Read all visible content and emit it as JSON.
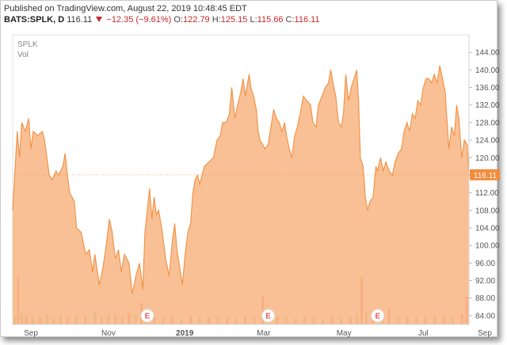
{
  "header": {
    "published": "Published on TradingView.com, August 22, 2019 10:48:45 EDT",
    "symbol": "BATS:SPLK, D",
    "last": "116.11",
    "change": "−12.35 (−9.61%)",
    "open_label": "O:",
    "open": "122.79",
    "high_label": "H:",
    "high": "125.15",
    "low_label": "L:",
    "low": "115.66",
    "close_label": "C:",
    "close": "116.11"
  },
  "legend": {
    "symbol": "SPLK",
    "volume": "Vol"
  },
  "colors": {
    "area_line": "#f0954a",
    "area_fill": "#f7b07a",
    "vol_up": "#b5d4a8",
    "vol_down": "#f2a28a",
    "price_tag": "#f28c3c",
    "event": "#e05a5a"
  },
  "chart_data": {
    "type": "area",
    "symbol": "SPLK",
    "ylim": [
      82,
      148
    ],
    "y_ticks": [
      "144.00",
      "140.00",
      "136.00",
      "132.00",
      "128.00",
      "124.00",
      "120.00",
      "116.00",
      "112.00",
      "108.00",
      "104.00",
      "100.00",
      "96.00",
      "92.00",
      "88.00",
      "84.00"
    ],
    "x_ticks": [
      {
        "label": "Sep",
        "x": 0.04
      },
      {
        "label": "Nov",
        "x": 0.21
      },
      {
        "label": "2019",
        "x": 0.377
      },
      {
        "label": "Mar",
        "x": 0.55
      },
      {
        "label": "May",
        "x": 0.726
      },
      {
        "label": "Jul",
        "x": 0.9
      },
      {
        "label": "Sep",
        "x": 1.07
      }
    ],
    "last_price": "116.11",
    "last_value": 116.11,
    "events": [
      {
        "label": "E",
        "x": 0.295
      },
      {
        "label": "E",
        "x": 0.56
      },
      {
        "label": "E",
        "x": 0.8
      }
    ],
    "series": [
      {
        "points": [
          [
            0.0,
            108
          ],
          [
            0.01,
            126
          ],
          [
            0.015,
            120
          ],
          [
            0.02,
            128
          ],
          [
            0.028,
            126
          ],
          [
            0.035,
            129
          ],
          [
            0.04,
            122
          ],
          [
            0.045,
            126
          ],
          [
            0.055,
            125
          ],
          [
            0.065,
            126
          ],
          [
            0.07,
            124
          ],
          [
            0.08,
            116
          ],
          [
            0.087,
            115
          ],
          [
            0.095,
            117
          ],
          [
            0.1,
            116
          ],
          [
            0.11,
            118
          ],
          [
            0.115,
            121
          ],
          [
            0.12,
            116
          ],
          [
            0.125,
            112
          ],
          [
            0.135,
            110
          ],
          [
            0.14,
            104
          ],
          [
            0.15,
            103
          ],
          [
            0.16,
            98
          ],
          [
            0.168,
            99
          ],
          [
            0.175,
            94
          ],
          [
            0.18,
            98
          ],
          [
            0.19,
            91
          ],
          [
            0.198,
            95
          ],
          [
            0.205,
            100
          ],
          [
            0.212,
            106
          ],
          [
            0.218,
            103
          ],
          [
            0.225,
            97
          ],
          [
            0.232,
            99
          ],
          [
            0.238,
            94
          ],
          [
            0.245,
            98
          ],
          [
            0.255,
            96
          ],
          [
            0.262,
            89
          ],
          [
            0.27,
            93
          ],
          [
            0.278,
            96
          ],
          [
            0.285,
            90
          ],
          [
            0.29,
            103
          ],
          [
            0.297,
            110
          ],
          [
            0.3,
            113
          ],
          [
            0.305,
            106
          ],
          [
            0.31,
            111
          ],
          [
            0.315,
            107
          ],
          [
            0.32,
            108
          ],
          [
            0.328,
            103
          ],
          [
            0.335,
            97
          ],
          [
            0.343,
            93
          ],
          [
            0.35,
            101
          ],
          [
            0.355,
            105
          ],
          [
            0.36,
            99
          ],
          [
            0.366,
            95
          ],
          [
            0.372,
            91
          ],
          [
            0.378,
            98
          ],
          [
            0.384,
            103
          ],
          [
            0.39,
            105
          ],
          [
            0.395,
            112
          ],
          [
            0.4,
            115
          ],
          [
            0.405,
            116
          ],
          [
            0.41,
            114
          ],
          [
            0.42,
            118
          ],
          [
            0.43,
            119
          ],
          [
            0.44,
            120
          ],
          [
            0.448,
            124
          ],
          [
            0.455,
            125
          ],
          [
            0.46,
            128
          ],
          [
            0.468,
            128
          ],
          [
            0.475,
            130
          ],
          [
            0.48,
            136
          ],
          [
            0.487,
            129
          ],
          [
            0.493,
            132
          ],
          [
            0.5,
            135
          ],
          [
            0.505,
            138
          ],
          [
            0.51,
            134
          ],
          [
            0.518,
            139
          ],
          [
            0.522,
            136
          ],
          [
            0.528,
            134
          ],
          [
            0.534,
            131
          ],
          [
            0.538,
            126
          ],
          [
            0.542,
            124
          ],
          [
            0.548,
            123
          ],
          [
            0.553,
            122
          ],
          [
            0.56,
            123
          ],
          [
            0.566,
            127
          ],
          [
            0.572,
            131
          ],
          [
            0.578,
            129
          ],
          [
            0.584,
            128
          ],
          [
            0.59,
            126
          ],
          [
            0.596,
            128
          ],
          [
            0.6,
            125
          ],
          [
            0.606,
            122
          ],
          [
            0.612,
            120
          ],
          [
            0.618,
            125
          ],
          [
            0.624,
            127
          ],
          [
            0.63,
            130
          ],
          [
            0.637,
            134
          ],
          [
            0.645,
            133
          ],
          [
            0.653,
            132
          ],
          [
            0.658,
            128
          ],
          [
            0.665,
            127
          ],
          [
            0.67,
            132
          ],
          [
            0.678,
            134
          ],
          [
            0.685,
            136
          ],
          [
            0.692,
            137
          ],
          [
            0.697,
            140
          ],
          [
            0.702,
            137
          ],
          [
            0.708,
            134
          ],
          [
            0.714,
            128
          ],
          [
            0.72,
            127
          ],
          [
            0.725,
            130
          ],
          [
            0.73,
            139
          ],
          [
            0.736,
            133
          ],
          [
            0.742,
            136
          ],
          [
            0.748,
            138
          ],
          [
            0.754,
            140
          ],
          [
            0.758,
            133
          ],
          [
            0.762,
            120
          ],
          [
            0.768,
            118
          ],
          [
            0.773,
            111
          ],
          [
            0.778,
            108
          ],
          [
            0.783,
            110
          ],
          [
            0.79,
            111
          ],
          [
            0.796,
            118
          ],
          [
            0.8,
            117
          ],
          [
            0.806,
            120
          ],
          [
            0.812,
            117
          ],
          [
            0.818,
            119
          ],
          [
            0.825,
            117
          ],
          [
            0.832,
            116
          ],
          [
            0.838,
            119
          ],
          [
            0.845,
            121
          ],
          [
            0.852,
            122
          ],
          [
            0.858,
            126
          ],
          [
            0.864,
            128
          ],
          [
            0.87,
            126
          ],
          [
            0.876,
            130
          ],
          [
            0.882,
            129
          ],
          [
            0.888,
            133
          ],
          [
            0.894,
            132
          ],
          [
            0.9,
            136
          ],
          [
            0.906,
            138
          ],
          [
            0.912,
            138
          ],
          [
            0.918,
            137
          ],
          [
            0.924,
            139
          ],
          [
            0.93,
            137
          ],
          [
            0.936,
            141
          ],
          [
            0.942,
            138
          ],
          [
            0.948,
            135
          ],
          [
            0.952,
            128
          ],
          [
            0.956,
            122
          ],
          [
            0.962,
            127
          ],
          [
            0.968,
            125
          ],
          [
            0.973,
            132
          ],
          [
            0.978,
            129
          ],
          [
            0.984,
            120
          ],
          [
            0.99,
            124
          ],
          [
            0.996,
            123
          ],
          [
            1.0,
            116.11
          ]
        ]
      }
    ],
    "volume": [
      [
        0.005,
        0.1,
        "u"
      ],
      [
        0.012,
        0.55,
        "d"
      ],
      [
        0.02,
        0.12,
        "u"
      ],
      [
        0.03,
        0.1,
        "d"
      ],
      [
        0.045,
        0.08,
        "u"
      ],
      [
        0.06,
        0.09,
        "d"
      ],
      [
        0.075,
        0.12,
        "u"
      ],
      [
        0.09,
        0.07,
        "d"
      ],
      [
        0.105,
        0.1,
        "u"
      ],
      [
        0.12,
        0.09,
        "d"
      ],
      [
        0.14,
        0.11,
        "u"
      ],
      [
        0.16,
        0.1,
        "d"
      ],
      [
        0.18,
        0.14,
        "u"
      ],
      [
        0.195,
        0.08,
        "d"
      ],
      [
        0.21,
        0.12,
        "u"
      ],
      [
        0.225,
        0.1,
        "d"
      ],
      [
        0.24,
        0.09,
        "u"
      ],
      [
        0.255,
        0.13,
        "d"
      ],
      [
        0.27,
        0.12,
        "u"
      ],
      [
        0.282,
        0.25,
        "d"
      ],
      [
        0.292,
        0.07,
        "u"
      ],
      [
        0.31,
        0.09,
        "d"
      ],
      [
        0.33,
        0.08,
        "u"
      ],
      [
        0.35,
        0.09,
        "d"
      ],
      [
        0.37,
        0.07,
        "u"
      ],
      [
        0.39,
        0.1,
        "d"
      ],
      [
        0.41,
        0.09,
        "u"
      ],
      [
        0.43,
        0.08,
        "d"
      ],
      [
        0.45,
        0.09,
        "u"
      ],
      [
        0.47,
        0.08,
        "d"
      ],
      [
        0.49,
        0.07,
        "u"
      ],
      [
        0.51,
        0.09,
        "d"
      ],
      [
        0.53,
        0.08,
        "u"
      ],
      [
        0.548,
        0.33,
        "d"
      ],
      [
        0.56,
        0.1,
        "u"
      ],
      [
        0.58,
        0.09,
        "d"
      ],
      [
        0.6,
        0.08,
        "u"
      ],
      [
        0.62,
        0.07,
        "d"
      ],
      [
        0.64,
        0.08,
        "u"
      ],
      [
        0.66,
        0.09,
        "d"
      ],
      [
        0.68,
        0.07,
        "u"
      ],
      [
        0.7,
        0.09,
        "d"
      ],
      [
        0.72,
        0.08,
        "u"
      ],
      [
        0.74,
        0.09,
        "d"
      ],
      [
        0.755,
        0.12,
        "u"
      ],
      [
        0.765,
        0.55,
        "d"
      ],
      [
        0.775,
        0.13,
        "u"
      ],
      [
        0.79,
        0.1,
        "d"
      ],
      [
        0.81,
        0.12,
        "u"
      ],
      [
        0.825,
        0.18,
        "d"
      ],
      [
        0.845,
        0.1,
        "u"
      ],
      [
        0.865,
        0.09,
        "d"
      ],
      [
        0.885,
        0.08,
        "u"
      ],
      [
        0.905,
        0.09,
        "d"
      ],
      [
        0.925,
        0.1,
        "u"
      ],
      [
        0.945,
        0.09,
        "d"
      ],
      [
        0.965,
        0.08,
        "u"
      ],
      [
        0.985,
        0.12,
        "d"
      ],
      [
        0.995,
        0.32,
        "d"
      ]
    ]
  }
}
